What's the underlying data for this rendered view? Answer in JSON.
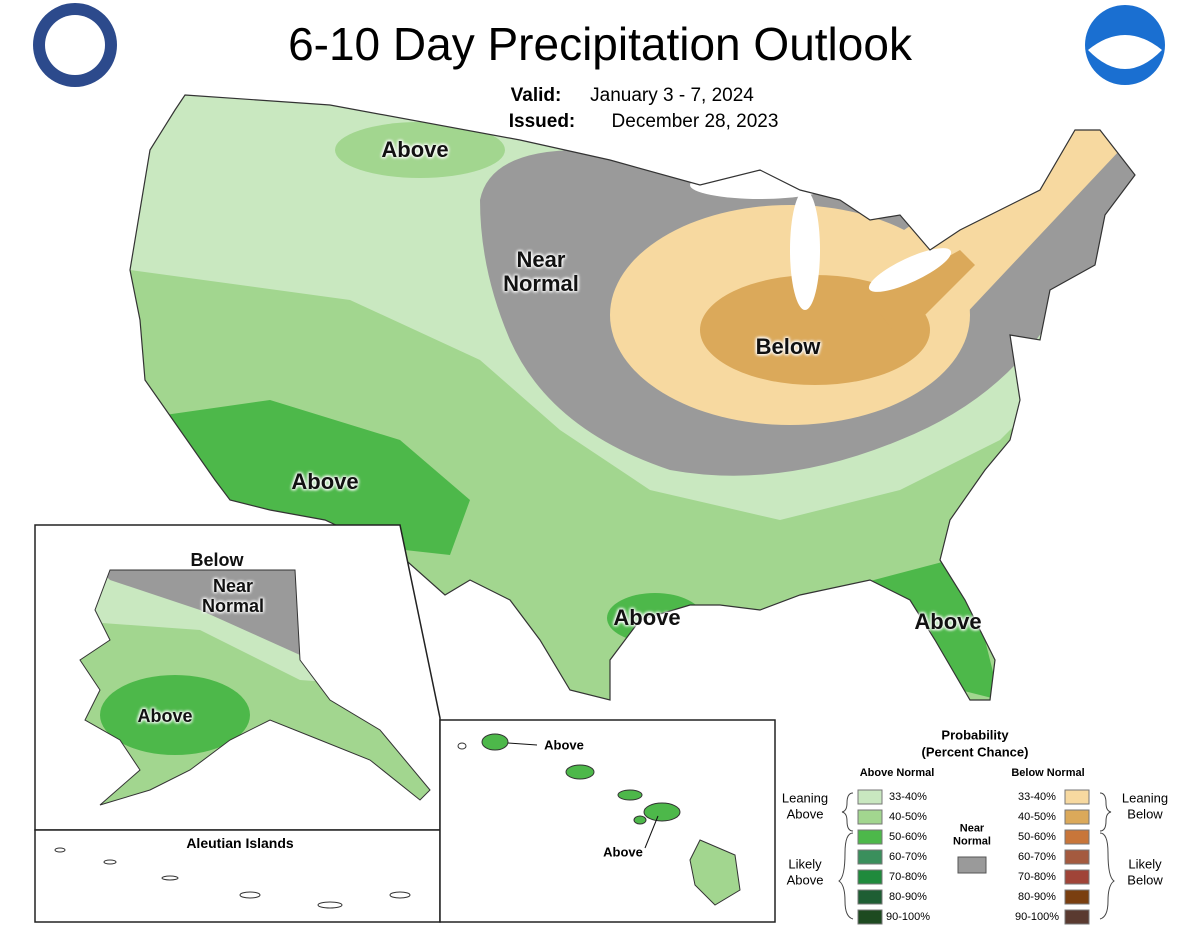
{
  "header": {
    "title": "6-10 Day Precipitation Outlook",
    "valid_label": "Valid:",
    "valid_date": "January 3 - 7, 2024",
    "issued_label": "Issued:",
    "issued_date": "December 28, 2023"
  },
  "conus_labels": [
    "Above",
    "Near Normal",
    "Below",
    "Above",
    "Above",
    "Above"
  ],
  "alaska": {
    "labels": [
      "Below",
      "Near Normal",
      "Above"
    ],
    "aleutian": "Aleutian Islands"
  },
  "hawaii": {
    "labels": [
      "Above",
      "Above"
    ]
  },
  "legend": {
    "title": "Probability",
    "subtitle": "(Percent Chance)",
    "above_heading": "Above Normal",
    "below_heading": "Below Normal",
    "leaning_above": "Leaning Above",
    "likely_above": "Likely Above",
    "near_normal": "Near Normal",
    "leaning_below": "Leaning Below",
    "likely_below": "Likely Below",
    "near_normal_color": "#9a9a9a",
    "above": [
      {
        "label": "33-40%",
        "color": "#c9e8c0"
      },
      {
        "label": "40-50%",
        "color": "#a2d68f"
      },
      {
        "label": "50-60%",
        "color": "#4db84a"
      },
      {
        "label": "60-70%",
        "color": "#3a8f5c"
      },
      {
        "label": "70-80%",
        "color": "#1f8a3c"
      },
      {
        "label": "80-90%",
        "color": "#1e5e33"
      },
      {
        "label": "90-100%",
        "color": "#1d4a20"
      }
    ],
    "below": [
      {
        "label": "33-40%",
        "color": "#f7d9a0"
      },
      {
        "label": "40-50%",
        "color": "#dba95a"
      },
      {
        "label": "50-60%",
        "color": "#c8763a"
      },
      {
        "label": "60-70%",
        "color": "#a45a3f"
      },
      {
        "label": "70-80%",
        "color": "#a04438"
      },
      {
        "label": "80-90%",
        "color": "#7a3f10"
      },
      {
        "label": "90-100%",
        "color": "#5a3a30"
      }
    ]
  }
}
